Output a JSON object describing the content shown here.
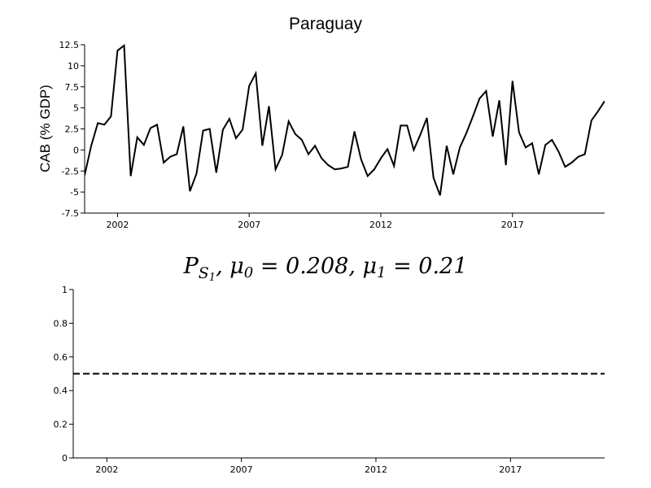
{
  "chart_data": [
    {
      "type": "line",
      "title": "Paraguay",
      "ylabel": "CAB (% GDP)",
      "xlabel": "",
      "xlim": [
        2000.75,
        2020.5
      ],
      "ylim": [
        -7.5,
        12.5
      ],
      "yticks": [
        "-7.5",
        "-5",
        "-2.5",
        "0",
        "2.5",
        "5",
        "7.5",
        "10",
        "12.5"
      ],
      "xticks": [
        "2002",
        "2007",
        "2012",
        "2017"
      ],
      "grid": false,
      "x": [
        2000.75,
        2001.0,
        2001.25,
        2001.5,
        2001.75,
        2002.0,
        2002.25,
        2002.5,
        2002.75,
        2003.0,
        2003.25,
        2003.5,
        2003.75,
        2004.0,
        2004.25,
        2004.5,
        2004.75,
        2005.0,
        2005.25,
        2005.5,
        2005.75,
        2006.0,
        2006.25,
        2006.5,
        2006.75,
        2007.0,
        2007.25,
        2007.5,
        2007.75,
        2008.0,
        2008.25,
        2008.5,
        2008.75,
        2009.0,
        2009.25,
        2009.5,
        2009.75,
        2010.0,
        2010.25,
        2010.5,
        2010.75,
        2011.0,
        2011.25,
        2011.5,
        2011.75,
        2012.0,
        2012.25,
        2012.5,
        2012.75,
        2013.0,
        2013.25,
        2013.5,
        2013.75,
        2014.0,
        2014.25,
        2014.5,
        2014.75,
        2015.0,
        2015.25,
        2015.5,
        2015.75,
        2016.0,
        2016.25,
        2016.5,
        2016.75,
        2017.0,
        2017.25,
        2017.5,
        2017.75,
        2018.0,
        2018.25,
        2018.5,
        2018.75,
        2019.0,
        2019.25,
        2019.5,
        2019.75,
        2020.0,
        2020.25,
        2020.5
      ],
      "y": [
        -3.0,
        0.5,
        3.2,
        3.0,
        4.0,
        11.8,
        12.4,
        -3.1,
        1.5,
        0.6,
        2.6,
        3.0,
        -1.5,
        -0.8,
        -0.5,
        2.8,
        -4.9,
        -2.8,
        2.3,
        2.5,
        -2.7,
        2.4,
        3.7,
        1.4,
        2.4,
        7.6,
        9.1,
        0.5,
        5.2,
        -2.3,
        -0.6,
        3.4,
        1.9,
        1.2,
        -0.5,
        0.5,
        -1.0,
        -1.8,
        -2.3,
        -2.2,
        -2.0,
        2.2,
        -1.1,
        -3.1,
        -2.3,
        -1.0,
        0.1,
        -1.9,
        2.9,
        2.9,
        0.0,
        1.8,
        3.8,
        -3.3,
        -5.4,
        0.5,
        -2.9,
        0.3,
        2.0,
        4.0,
        6.1,
        7.0,
        1.6,
        5.9,
        -1.8,
        8.2,
        2.1,
        0.3,
        0.8,
        -2.9,
        0.6,
        1.2,
        -0.2,
        -2.0,
        -1.5,
        -0.8,
        -0.5,
        3.5,
        4.6,
        5.8
      ]
    },
    {
      "type": "line",
      "title": "P_{S_1}, μ_0 = 0.208, μ_1 = 0.21",
      "title_parts": {
        "P": "P",
        "S": "S",
        "one": "1",
        "rest": ", μ",
        "zero": "0",
        "eq0": " = 0.208, μ",
        "one_b": "1",
        "eq1": " = 0.21"
      },
      "xlabel": "",
      "ylabel": "",
      "xlim": [
        2000.75,
        2020.5
      ],
      "ylim": [
        0,
        1
      ],
      "yticks": [
        "0",
        "0.2",
        "0.4",
        "0.6",
        "0.8",
        "1"
      ],
      "xticks": [
        "2002",
        "2007",
        "2012",
        "2017"
      ],
      "grid": false,
      "reference_line": {
        "y": 0.5,
        "style": "dashed"
      },
      "series": []
    }
  ]
}
